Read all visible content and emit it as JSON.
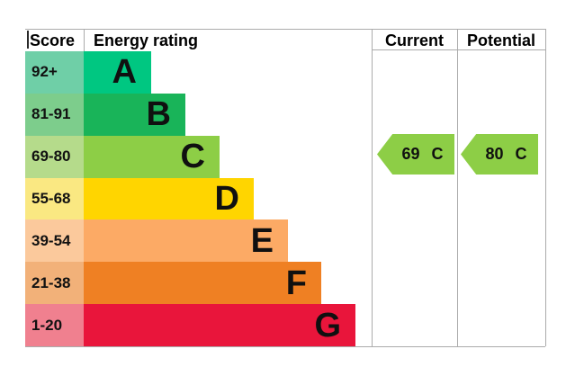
{
  "header": {
    "score": "Score",
    "energy_rating": "Energy rating",
    "current": "Current",
    "potential": "Potential"
  },
  "chart_data": {
    "type": "bar",
    "chart_kind": "epc-energy-efficiency-rating",
    "columns": [
      "Score",
      "Energy rating",
      "Current",
      "Potential"
    ],
    "categories": [
      "A",
      "B",
      "C",
      "D",
      "E",
      "F",
      "G"
    ],
    "bands": [
      {
        "score": "92+",
        "letter": "A",
        "color": "#00c781",
        "score_cell_color": "#6fcfa7"
      },
      {
        "score": "81-91",
        "letter": "B",
        "color": "#19b459",
        "score_cell_color": "#7dcd8c"
      },
      {
        "score": "69-80",
        "letter": "C",
        "color": "#8dce46",
        "score_cell_color": "#b5db8b"
      },
      {
        "score": "55-68",
        "letter": "D",
        "color": "#ffd500",
        "score_cell_color": "#fae882"
      },
      {
        "score": "39-54",
        "letter": "E",
        "color": "#fcaa65",
        "score_cell_color": "#fbc99c"
      },
      {
        "score": "21-38",
        "letter": "F",
        "color": "#ef8023",
        "score_cell_color": "#f2b179"
      },
      {
        "score": "1-20",
        "letter": "G",
        "color": "#e9153b",
        "score_cell_color": "#f0808f"
      }
    ],
    "markers": [
      {
        "column": "Current",
        "value": "69",
        "band": "C",
        "color": "#8dce46"
      },
      {
        "column": "Potential",
        "value": "80",
        "band": "C",
        "color": "#8dce46"
      }
    ]
  }
}
